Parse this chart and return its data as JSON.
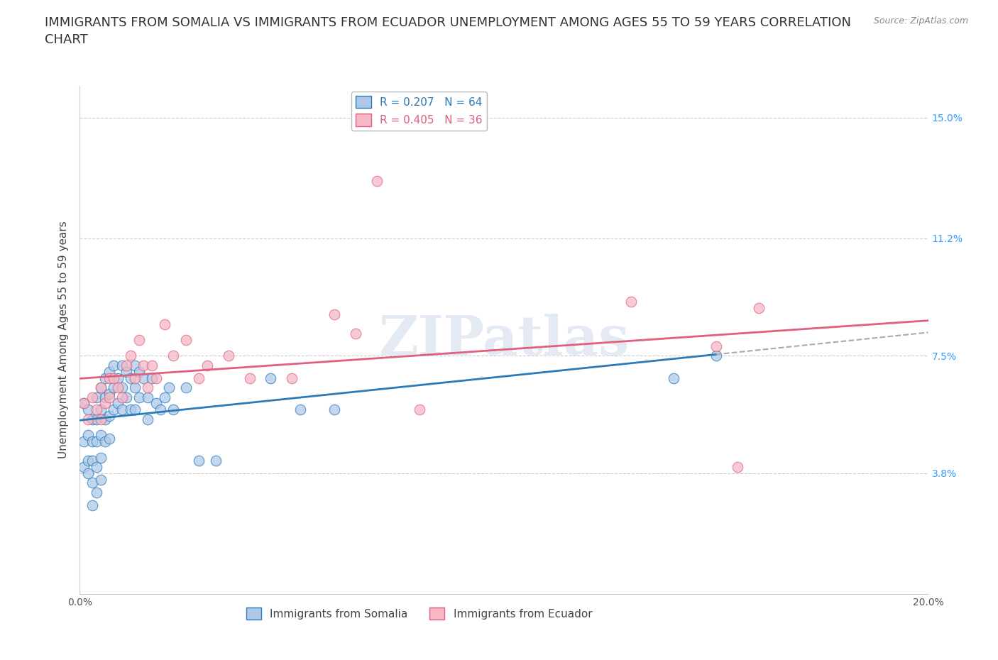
{
  "title": "IMMIGRANTS FROM SOMALIA VS IMMIGRANTS FROM ECUADOR UNEMPLOYMENT AMONG AGES 55 TO 59 YEARS CORRELATION\nCHART",
  "source": "Source: ZipAtlas.com",
  "ylabel": "Unemployment Among Ages 55 to 59 years",
  "xlim": [
    0.0,
    0.2
  ],
  "ylim": [
    0.0,
    0.16
  ],
  "yticks": [
    0.0,
    0.038,
    0.075,
    0.112,
    0.15
  ],
  "ytick_labels": [
    "",
    "3.8%",
    "7.5%",
    "11.2%",
    "15.0%"
  ],
  "xticks": [
    0.0,
    0.04,
    0.08,
    0.12,
    0.16,
    0.2
  ],
  "xtick_labels": [
    "0.0%",
    "",
    "",
    "",
    "",
    "20.0%"
  ],
  "watermark": "ZIPatlas",
  "somalia_color": "#aec9e8",
  "ecuador_color": "#f5b8c4",
  "somalia_line_color": "#2b7bba",
  "ecuador_line_color": "#e0607e",
  "somalia_R": 0.207,
  "somalia_N": 64,
  "ecuador_R": 0.405,
  "ecuador_N": 36,
  "somalia_x": [
    0.001,
    0.001,
    0.001,
    0.002,
    0.002,
    0.002,
    0.002,
    0.003,
    0.003,
    0.003,
    0.003,
    0.003,
    0.004,
    0.004,
    0.004,
    0.004,
    0.004,
    0.005,
    0.005,
    0.005,
    0.005,
    0.005,
    0.006,
    0.006,
    0.006,
    0.006,
    0.007,
    0.007,
    0.007,
    0.007,
    0.008,
    0.008,
    0.008,
    0.009,
    0.009,
    0.01,
    0.01,
    0.01,
    0.011,
    0.011,
    0.012,
    0.012,
    0.013,
    0.013,
    0.013,
    0.014,
    0.014,
    0.015,
    0.016,
    0.016,
    0.017,
    0.018,
    0.019,
    0.02,
    0.021,
    0.022,
    0.025,
    0.028,
    0.032,
    0.045,
    0.052,
    0.06,
    0.14,
    0.15
  ],
  "somalia_y": [
    0.06,
    0.048,
    0.04,
    0.058,
    0.05,
    0.042,
    0.038,
    0.055,
    0.048,
    0.042,
    0.035,
    0.028,
    0.062,
    0.055,
    0.048,
    0.04,
    0.032,
    0.065,
    0.058,
    0.05,
    0.043,
    0.036,
    0.068,
    0.062,
    0.055,
    0.048,
    0.07,
    0.063,
    0.056,
    0.049,
    0.072,
    0.065,
    0.058,
    0.068,
    0.06,
    0.072,
    0.065,
    0.058,
    0.07,
    0.062,
    0.068,
    0.058,
    0.072,
    0.065,
    0.058,
    0.07,
    0.062,
    0.068,
    0.062,
    0.055,
    0.068,
    0.06,
    0.058,
    0.062,
    0.065,
    0.058,
    0.065,
    0.042,
    0.042,
    0.068,
    0.058,
    0.058,
    0.068,
    0.075
  ],
  "ecuador_x": [
    0.001,
    0.002,
    0.003,
    0.004,
    0.005,
    0.005,
    0.006,
    0.007,
    0.007,
    0.008,
    0.009,
    0.01,
    0.011,
    0.012,
    0.013,
    0.014,
    0.015,
    0.016,
    0.017,
    0.018,
    0.02,
    0.022,
    0.025,
    0.028,
    0.03,
    0.035,
    0.04,
    0.05,
    0.06,
    0.065,
    0.07,
    0.08,
    0.13,
    0.15,
    0.155,
    0.16
  ],
  "ecuador_y": [
    0.06,
    0.055,
    0.062,
    0.058,
    0.055,
    0.065,
    0.06,
    0.068,
    0.062,
    0.068,
    0.065,
    0.062,
    0.072,
    0.075,
    0.068,
    0.08,
    0.072,
    0.065,
    0.072,
    0.068,
    0.085,
    0.075,
    0.08,
    0.068,
    0.072,
    0.075,
    0.068,
    0.068,
    0.088,
    0.082,
    0.13,
    0.058,
    0.092,
    0.078,
    0.04,
    0.09
  ],
  "background_color": "#ffffff",
  "grid_color": "#cccccc",
  "right_tick_color": "#3399ff",
  "title_fontsize": 13,
  "axis_label_fontsize": 11,
  "tick_fontsize": 10,
  "legend_fontsize": 11
}
